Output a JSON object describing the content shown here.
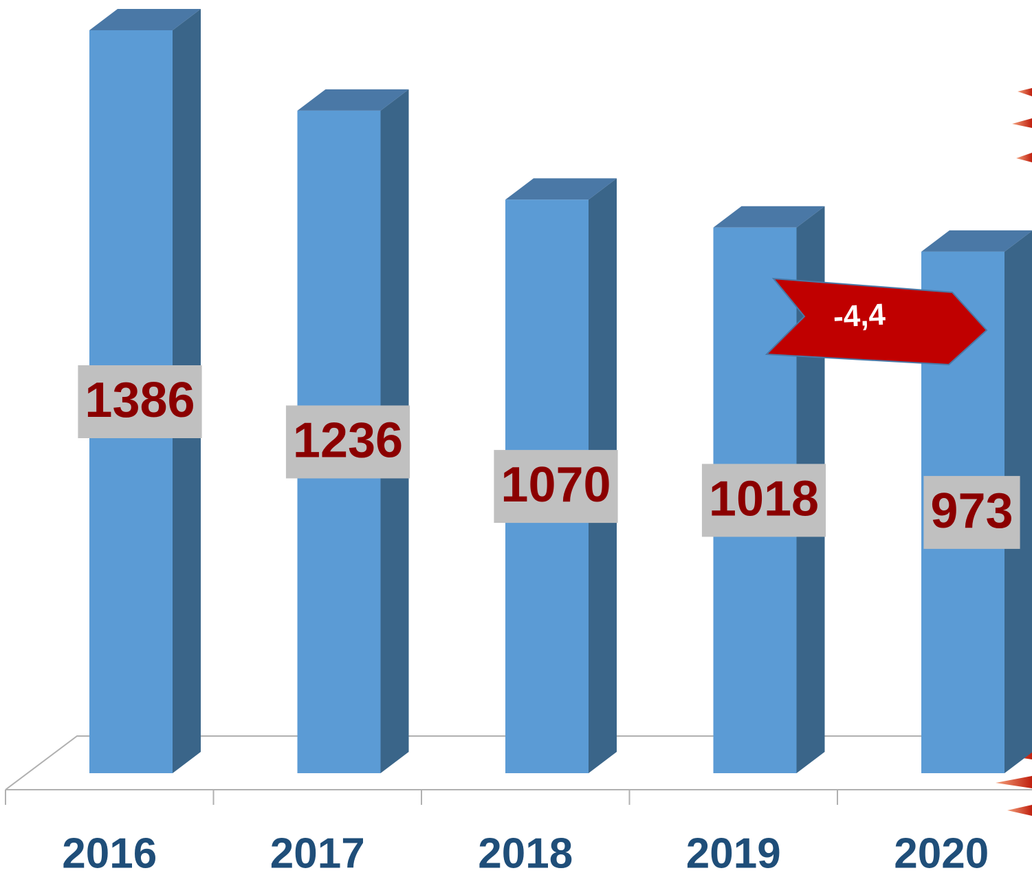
{
  "chart_data": {
    "type": "bar3d",
    "categories": [
      "2016",
      "2017",
      "2018",
      "2019",
      "2020"
    ],
    "values": [
      1386,
      1236,
      1070,
      1018,
      973
    ],
    "color": "#5b9bd5",
    "annotation": "-4,4"
  }
}
